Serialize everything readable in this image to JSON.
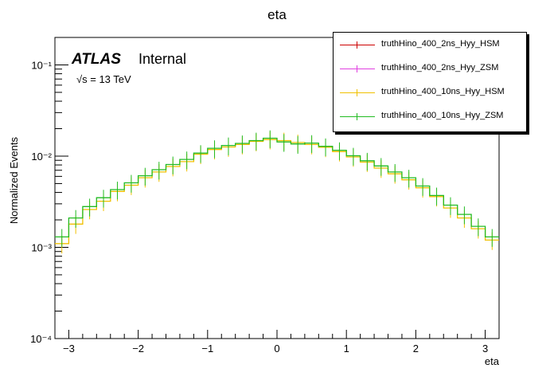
{
  "chart_data": {
    "type": "line",
    "title": "eta",
    "xlabel": "eta",
    "ylabel": "Normalized Events",
    "xlim": [
      -3.2,
      3.2
    ],
    "ylim": [
      0.0001,
      0.2
    ],
    "yscale": "log",
    "x_ticks": [
      "−3",
      "−2",
      "−1",
      "0",
      "1",
      "2",
      "3"
    ],
    "y_ticks": [
      "10⁻⁴",
      "10⁻³",
      "10⁻²",
      "10⁻¹"
    ],
    "annotation": {
      "experiment": "ATLAS",
      "status": "Internal",
      "energy": "√s = 13 TeV"
    },
    "legend_position": "top-right",
    "series": [
      {
        "name": "truthHino_400_2ns_Hyy_HSM",
        "color": "#cc0000",
        "visible": false
      },
      {
        "name": "truthHino_400_2ns_Hyy_ZSM",
        "color": "#e040e0",
        "visible": false
      },
      {
        "name": "truthHino_400_10ns_Hyy_HSM",
        "color": "#f0c000",
        "x": [
          -3.1,
          -2.9,
          -2.7,
          -2.5,
          -2.3,
          -2.1,
          -1.9,
          -1.7,
          -1.5,
          -1.3,
          -1.1,
          -0.9,
          -0.7,
          -0.5,
          -0.3,
          -0.1,
          0.1,
          0.3,
          0.5,
          0.7,
          0.9,
          1.1,
          1.3,
          1.5,
          1.7,
          1.9,
          2.1,
          2.3,
          2.5,
          2.7,
          2.9,
          3.1
        ],
        "y": [
          0.0011,
          0.0018,
          0.0026,
          0.0032,
          0.0041,
          0.0048,
          0.0058,
          0.0067,
          0.0077,
          0.0087,
          0.0105,
          0.0118,
          0.0126,
          0.0134,
          0.0145,
          0.0152,
          0.0148,
          0.0141,
          0.0134,
          0.0125,
          0.0112,
          0.0098,
          0.0086,
          0.0074,
          0.0064,
          0.0055,
          0.0045,
          0.0036,
          0.0027,
          0.0021,
          0.0016,
          0.0012
        ]
      },
      {
        "name": "truthHino_400_10ns_Hyy_ZSM",
        "color": "#22bb22",
        "x": [
          -3.1,
          -2.9,
          -2.7,
          -2.5,
          -2.3,
          -2.1,
          -1.9,
          -1.7,
          -1.5,
          -1.3,
          -1.1,
          -0.9,
          -0.7,
          -0.5,
          -0.3,
          -0.1,
          0.1,
          0.3,
          0.5,
          0.7,
          0.9,
          1.1,
          1.3,
          1.5,
          1.7,
          1.9,
          2.1,
          2.3,
          2.5,
          2.7,
          2.9,
          3.1
        ],
        "y": [
          0.0013,
          0.0021,
          0.0028,
          0.0035,
          0.0043,
          0.0051,
          0.0061,
          0.0071,
          0.0081,
          0.0092,
          0.0108,
          0.0122,
          0.0131,
          0.0138,
          0.0148,
          0.0157,
          0.0143,
          0.0136,
          0.0139,
          0.0128,
          0.0116,
          0.0101,
          0.0089,
          0.0078,
          0.0067,
          0.0058,
          0.0047,
          0.0037,
          0.0029,
          0.0023,
          0.0017,
          0.0013
        ]
      }
    ]
  }
}
